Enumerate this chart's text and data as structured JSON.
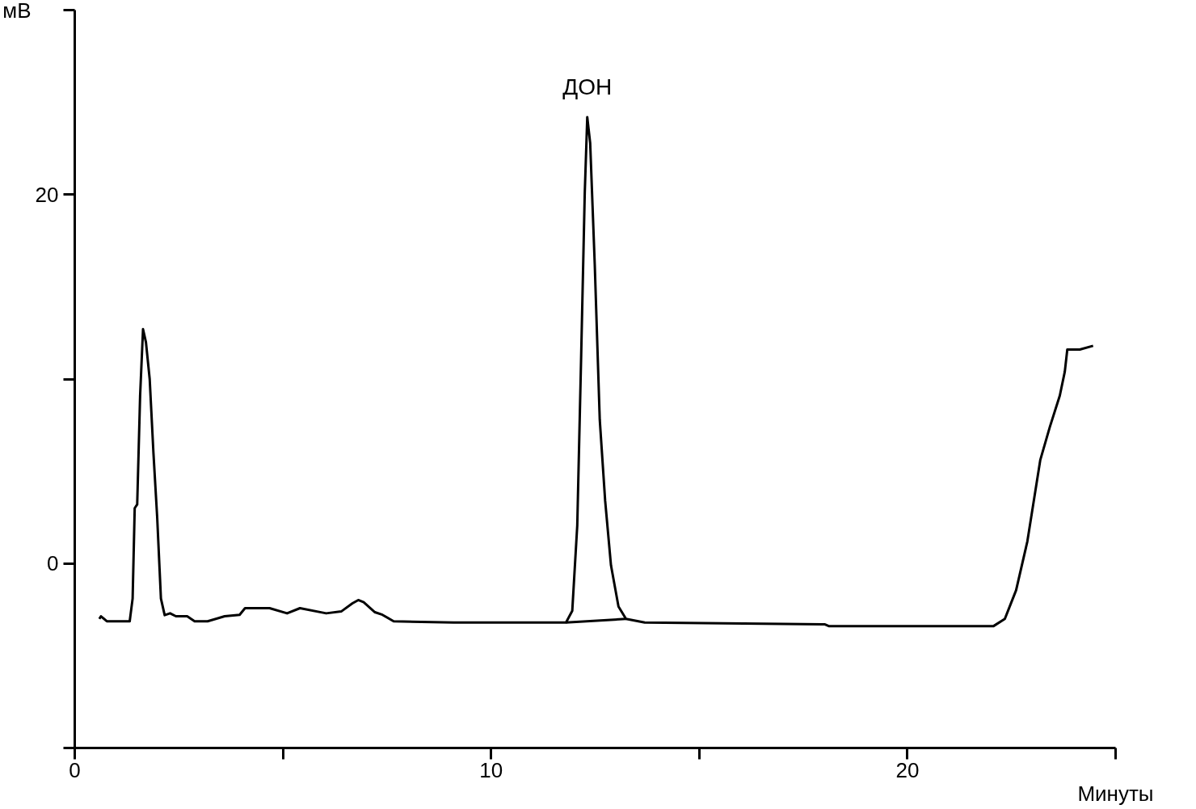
{
  "chart_data": {
    "type": "line",
    "xlabel": "Минуты",
    "ylabel": "мВ",
    "xlim": [
      0,
      25
    ],
    "ylim": [
      -10,
      30
    ],
    "xticks": [
      0,
      {
        "value": 5,
        "label": null
      },
      10,
      {
        "value": 15,
        "label": null
      },
      20,
      {
        "value": 25,
        "label": null
      }
    ],
    "yticks": [
      {
        "value": -10,
        "label": null
      },
      0,
      {
        "value": 10,
        "label": null
      },
      20,
      {
        "value": 30,
        "label": null
      }
    ],
    "marker": "none",
    "line_style": "solid",
    "annotations": [
      "ДОН"
    ],
    "series": [
      {
        "color": "#000000",
        "x": [
          0.59,
          0.63,
          0.77,
          1.32,
          1.39,
          1.44,
          1.5,
          1.57,
          1.64,
          1.71,
          1.8,
          1.89,
          1.98,
          2.07,
          2.16,
          2.29,
          2.43,
          2.7,
          2.88,
          3.19,
          3.6,
          3.96,
          4.09,
          4.68,
          5.1,
          5.41,
          6.04,
          6.4,
          6.67,
          6.81,
          6.94,
          7.21,
          7.39,
          7.66,
          9.1,
          11.8,
          11.95,
          12.07,
          12.16,
          12.25,
          12.31,
          12.38,
          12.49,
          12.61,
          12.74,
          12.88,
          13.06,
          13.24,
          13.69,
          18.02,
          18.11,
          22.07,
          22.34,
          22.61,
          22.88,
          23.19,
          23.42,
          23.66,
          23.78,
          23.84,
          23.96,
          24.14,
          24.46
        ],
        "values": [
          -3.0,
          -2.86,
          -3.13,
          -3.13,
          -1.9,
          3.0,
          3.2,
          9.1,
          12.7,
          12.0,
          10.0,
          6.0,
          2.5,
          -1.9,
          -2.8,
          -2.7,
          -2.86,
          -2.86,
          -3.13,
          -3.13,
          -2.86,
          -2.78,
          -2.42,
          -2.42,
          -2.7,
          -2.42,
          -2.7,
          -2.6,
          -2.16,
          -1.98,
          -2.1,
          -2.64,
          -2.78,
          -3.13,
          -3.2,
          -3.2,
          -2.56,
          2.07,
          10.9,
          20.1,
          24.2,
          22.8,
          16.2,
          7.8,
          3.4,
          -0.1,
          -2.33,
          -3.0,
          -3.2,
          -3.3,
          -3.39,
          -3.39,
          -3.0,
          -1.45,
          1.19,
          5.6,
          7.4,
          9.1,
          10.4,
          11.6,
          11.6,
          11.6,
          11.8
        ]
      },
      {
        "color": "#000000",
        "x": [
          11.8,
          13.24
        ],
        "values": [
          -3.2,
          -3.0
        ]
      }
    ]
  }
}
